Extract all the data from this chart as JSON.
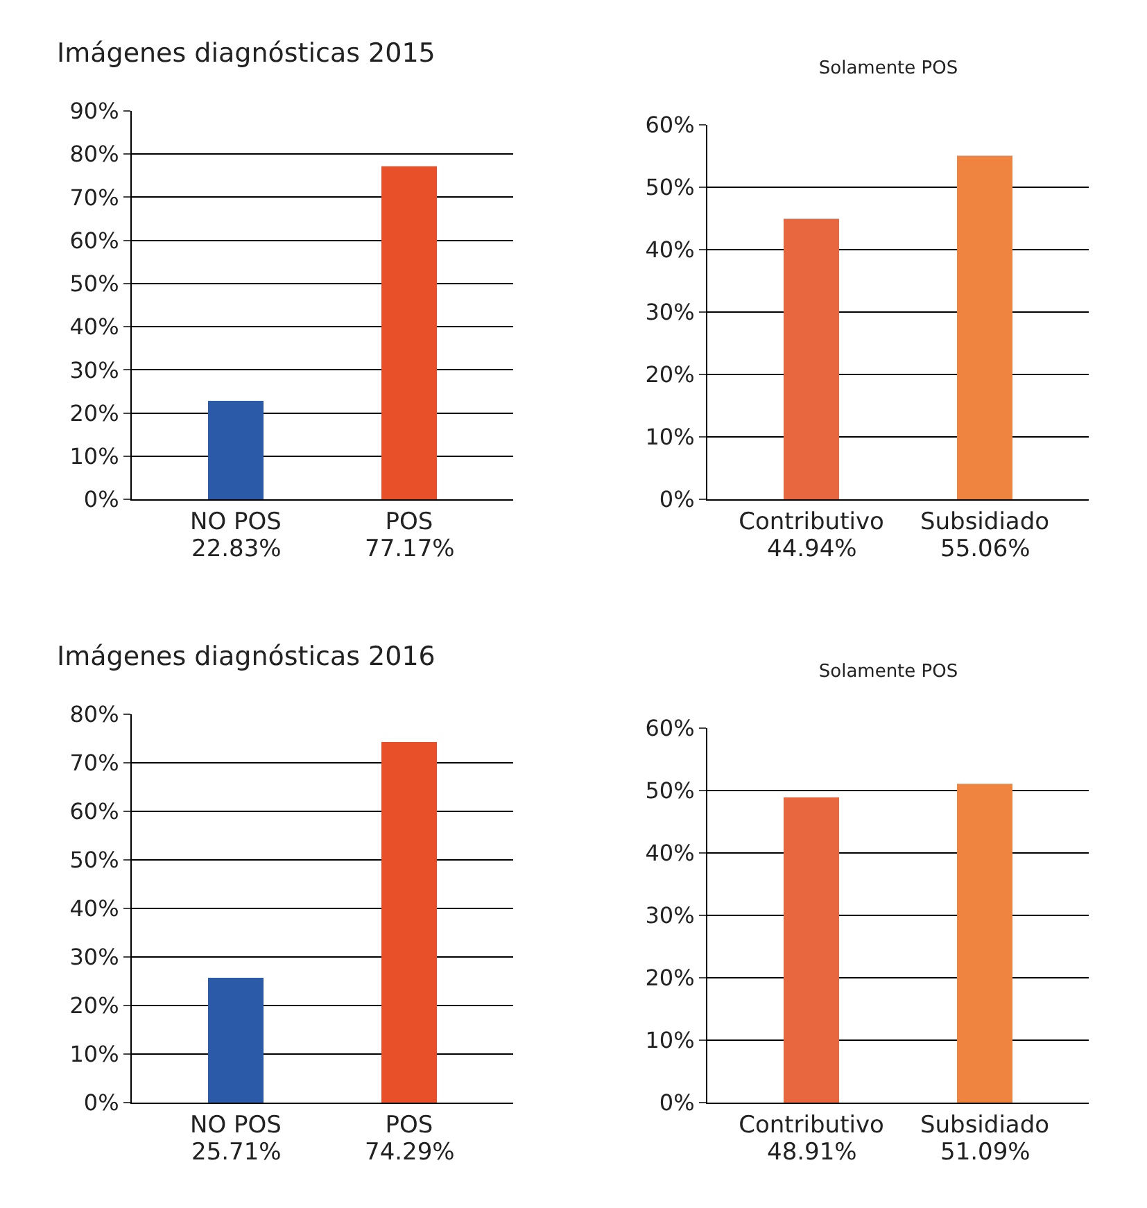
{
  "chart_data": [
    {
      "type": "bar",
      "title": "Imágenes diagnósticas 2015",
      "categories": [
        "NO POS",
        "POS"
      ],
      "values": [
        22.83,
        77.17
      ],
      "colors": [
        "#2b5ba8",
        "#e8502a"
      ],
      "value_labels": [
        "22.83%",
        "77.17%"
      ],
      "ylim": [
        0,
        90
      ],
      "yticks": [
        {
          "value": 0,
          "label": "0%"
        },
        {
          "value": 10,
          "label": "10%"
        },
        {
          "value": 20,
          "label": "20%"
        },
        {
          "value": 30,
          "label": "30%"
        },
        {
          "value": 40,
          "label": "40%"
        },
        {
          "value": 50,
          "label": "50%"
        },
        {
          "value": 60,
          "label": "60%"
        },
        {
          "value": 70,
          "label": "70%"
        },
        {
          "value": 80,
          "label": "80%"
        },
        {
          "value": 90,
          "label": "90%"
        }
      ],
      "grid": "y"
    },
    {
      "type": "bar",
      "title": "Solamente POS",
      "categories": [
        "Contributivo",
        "Subsidiado"
      ],
      "values": [
        44.94,
        55.06
      ],
      "colors": [
        "#e8673e",
        "#ef8440"
      ],
      "value_labels": [
        "44.94%",
        "55.06%"
      ],
      "ylim": [
        0,
        60
      ],
      "yticks": [
        {
          "value": 0,
          "label": "0%"
        },
        {
          "value": 10,
          "label": "10%"
        },
        {
          "value": 20,
          "label": "20%"
        },
        {
          "value": 30,
          "label": "30%"
        },
        {
          "value": 40,
          "label": "40%"
        },
        {
          "value": 50,
          "label": "50%"
        },
        {
          "value": 60,
          "label": "60%"
        }
      ],
      "grid": "y"
    },
    {
      "type": "bar",
      "title": "Imágenes diagnósticas 2016",
      "categories": [
        "NO POS",
        "POS"
      ],
      "values": [
        25.71,
        74.29
      ],
      "colors": [
        "#2b5ba8",
        "#e8502a"
      ],
      "value_labels": [
        "25.71%",
        "74.29%"
      ],
      "ylim": [
        0,
        80
      ],
      "yticks": [
        {
          "value": 0,
          "label": "0%"
        },
        {
          "value": 10,
          "label": "10%"
        },
        {
          "value": 20,
          "label": "20%"
        },
        {
          "value": 30,
          "label": "30%"
        },
        {
          "value": 40,
          "label": "40%"
        },
        {
          "value": 50,
          "label": "50%"
        },
        {
          "value": 60,
          "label": "60%"
        },
        {
          "value": 70,
          "label": "70%"
        },
        {
          "value": 80,
          "label": "80%"
        }
      ],
      "grid": "y"
    },
    {
      "type": "bar",
      "title": "Solamente POS",
      "categories": [
        "Contributivo",
        "Subsidiado"
      ],
      "values": [
        48.91,
        51.09
      ],
      "colors": [
        "#e8673e",
        "#ef8440"
      ],
      "value_labels": [
        "48.91%",
        "51.09%"
      ],
      "ylim": [
        0,
        60
      ],
      "yticks": [
        {
          "value": 0,
          "label": "0%"
        },
        {
          "value": 10,
          "label": "10%"
        },
        {
          "value": 20,
          "label": "20%"
        },
        {
          "value": 30,
          "label": "30%"
        },
        {
          "value": 40,
          "label": "40%"
        },
        {
          "value": 50,
          "label": "50%"
        },
        {
          "value": 60,
          "label": "60%"
        }
      ],
      "grid": "y"
    }
  ]
}
